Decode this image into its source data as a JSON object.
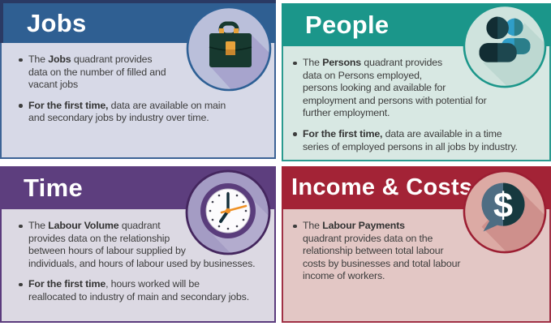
{
  "palette": {
    "page_bg": "#ffffff",
    "text": "#3d3d3d"
  },
  "cards": [
    {
      "id": "jobs",
      "title": "Jobs",
      "icon": "briefcase-icon",
      "theme": {
        "header_bg": "#2f5f92",
        "body_bg": "#d7d9e7",
        "border": "#3c6396",
        "corner_fold": "#2a3a64"
      },
      "bullets": [
        {
          "segments": [
            {
              "t": "The ",
              "b": false
            },
            {
              "t": "Jobs",
              "b": true
            },
            {
              "t": " quadrant provides\ndata on the number of filled and\nvacant jobs",
              "b": false
            }
          ]
        },
        {
          "segments": [
            {
              "t": "For the first time,",
              "b": true
            },
            {
              "t": " data are available on main\nand secondary jobs by industry over time.",
              "b": false
            }
          ]
        }
      ]
    },
    {
      "id": "people",
      "title": "People",
      "icon": "people-icon",
      "theme": {
        "header_bg": "#1b968a",
        "body_bg": "#d8e8e3",
        "border": "#2a9a8f"
      },
      "bullets": [
        {
          "segments": [
            {
              "t": "The ",
              "b": false
            },
            {
              "t": "Persons",
              "b": true
            },
            {
              "t": " quadrant provides\ndata on Persons employed,\npersons looking and available for\nemployment and persons with potential for\nfurther employment.",
              "b": false
            }
          ]
        },
        {
          "segments": [
            {
              "t": "For the first time,",
              "b": true
            },
            {
              "t": " data are available in a time\nseries of employed persons in all jobs by industry.",
              "b": false
            }
          ]
        }
      ]
    },
    {
      "id": "time",
      "title": "Time",
      "icon": "clock-icon",
      "theme": {
        "header_bg": "#5d3e7e",
        "body_bg": "#dcd9e3",
        "border": "#5b3b7d"
      },
      "bullets": [
        {
          "segments": [
            {
              "t": "The ",
              "b": false
            },
            {
              "t": "Labour Volume",
              "b": true
            },
            {
              "t": " quadrant\nprovides data on the relationship\nbetween hours of labour supplied by\nindividuals, and hours of labour used by businesses.",
              "b": false
            }
          ]
        },
        {
          "segments": [
            {
              "t": "For the first time",
              "b": true
            },
            {
              "t": ", hours worked will be\nreallocated to industry of main and secondary jobs.",
              "b": false
            }
          ]
        }
      ]
    },
    {
      "id": "income",
      "title": "Income & Costs",
      "icon": "dollar-icon",
      "icon_glyph": "$",
      "theme": {
        "header_bg": "#a32336",
        "body_bg": "#e3c7c5",
        "border": "#a03045"
      },
      "bullets": [
        {
          "segments": [
            {
              "t": "The ",
              "b": false
            },
            {
              "t": "Labour Payments",
              "b": true
            },
            {
              "t": "\nquadrant provides data on the\nrelationship between total labour\ncosts by businesses and total labour\nincome of workers.",
              "b": false
            }
          ]
        }
      ]
    }
  ]
}
